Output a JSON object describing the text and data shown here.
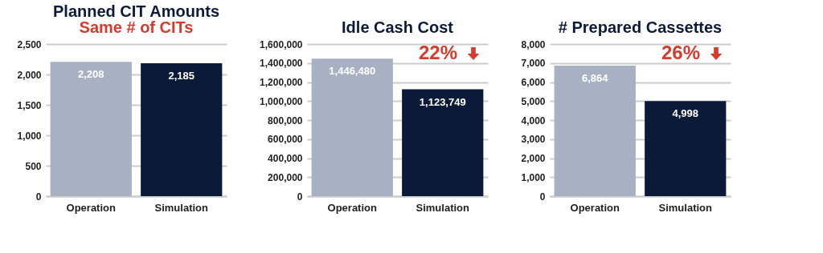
{
  "chart_data": [
    {
      "type": "bar",
      "title": "Planned CIT Amounts",
      "subtitle": "Same # of CITs",
      "categories": [
        "Operation",
        "Simulation"
      ],
      "values": [
        2208,
        2185
      ],
      "value_labels": [
        "2,208",
        "2,185"
      ],
      "colors": [
        "#a7b1c3",
        "#0c1a3a"
      ],
      "ylim": [
        0,
        2500
      ],
      "yticks": [
        0,
        {
          "value": 500,
          "label": "500"
        },
        {
          "value": 1000,
          "label": "1,000"
        },
        {
          "value": 1500,
          "label": "1,500"
        },
        {
          "value": 2000,
          "label": "2,000"
        },
        {
          "value": 2500,
          "label": "2,500"
        }
      ],
      "grid": "y"
    },
    {
      "type": "bar",
      "title": "Idle Cash Cost",
      "categories": [
        "Operation",
        "Simulation"
      ],
      "values": [
        1446480,
        1123749
      ],
      "value_labels": [
        "1,446,480",
        "1,123,749"
      ],
      "colors": [
        "#a7b1c3",
        "#0c1a3a"
      ],
      "ylim": [
        0,
        1600000
      ],
      "yticks": [
        0,
        {
          "value": 200000,
          "label": "200,000"
        },
        {
          "value": 400000,
          "label": "400,000"
        },
        {
          "value": 600000,
          "label": "600,000"
        },
        {
          "value": 800000,
          "label": "800,000"
        },
        {
          "value": 1000000,
          "label": "1,000,000"
        },
        {
          "value": 1200000,
          "label": "1,200,000"
        },
        {
          "value": 1400000,
          "label": "1,400,000"
        },
        {
          "value": 1600000,
          "label": "1,600,000"
        }
      ],
      "grid": "y",
      "annotations": [
        "22%"
      ]
    },
    {
      "type": "bar",
      "title": "# Prepared Cassettes",
      "categories": [
        "Operation",
        "Simulation"
      ],
      "values": [
        6864,
        4998
      ],
      "value_labels": [
        "6,864",
        "4,998"
      ],
      "colors": [
        "#a7b1c3",
        "#0c1a3a"
      ],
      "ylim": [
        0,
        8000
      ],
      "yticks": [
        0,
        {
          "value": 1000,
          "label": "1,000"
        },
        {
          "value": 2000,
          "label": "2,000"
        },
        {
          "value": 3000,
          "label": "3,000"
        },
        {
          "value": 4000,
          "label": "4,000"
        },
        {
          "value": 5000,
          "label": "5,000"
        },
        {
          "value": 6000,
          "label": "6,000"
        },
        {
          "value": 7000,
          "label": "7,000"
        },
        {
          "value": 8000,
          "label": "8,000"
        }
      ],
      "grid": "y",
      "annotations": [
        "26%"
      ]
    }
  ]
}
